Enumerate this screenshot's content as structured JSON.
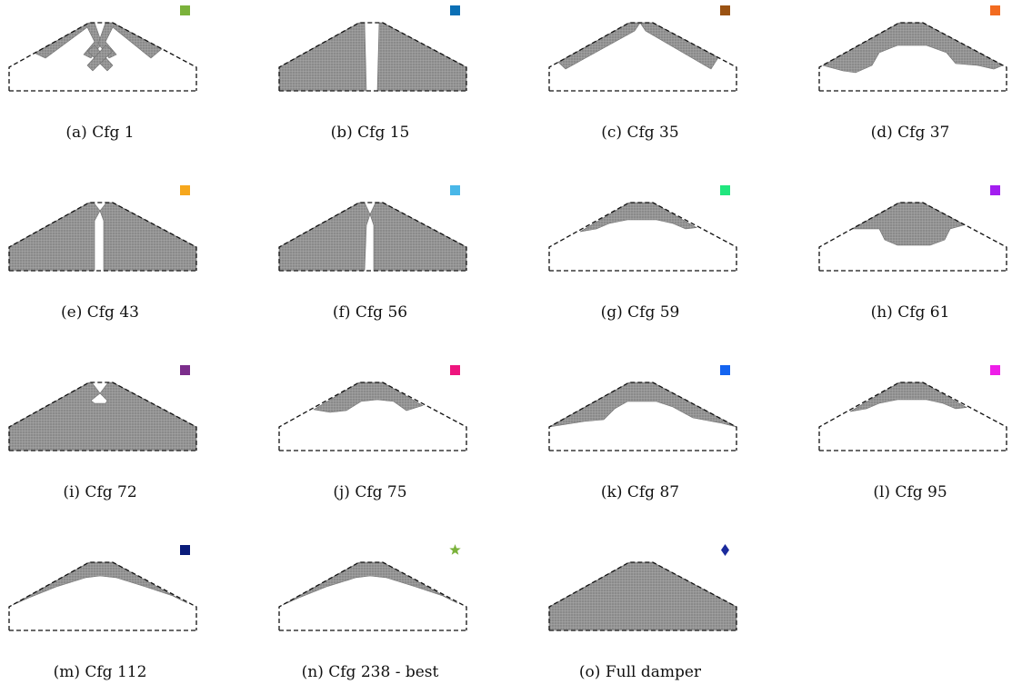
{
  "figure": {
    "panels": [
      {
        "caption": "(a) Cfg 1",
        "marker": {
          "shape": "square",
          "color": "#7bb23b"
        },
        "fill": "x-shape"
      },
      {
        "caption": "(b) Cfg 15",
        "marker": {
          "shape": "square",
          "color": "#0b6fb5"
        },
        "fill": "full-slot"
      },
      {
        "caption": "(c) Cfg 35",
        "marker": {
          "shape": "square",
          "color": "#9a5212"
        },
        "fill": "thin-v"
      },
      {
        "caption": "(d) Cfg 37",
        "marker": {
          "shape": "square",
          "color": "#f26b20"
        },
        "fill": "arch-wide"
      },
      {
        "caption": "(e) Cfg 43",
        "marker": {
          "shape": "square",
          "color": "#f6a71d"
        },
        "fill": "full-slot-x"
      },
      {
        "caption": "(f) Cfg 56",
        "marker": {
          "shape": "square",
          "color": "#49b7e8"
        },
        "fill": "full-notch"
      },
      {
        "caption": "(g) Cfg 59",
        "marker": {
          "shape": "square",
          "color": "#21e67e"
        },
        "fill": "cap-small"
      },
      {
        "caption": "(h) Cfg 61",
        "marker": {
          "shape": "square",
          "color": "#a31ef0"
        },
        "fill": "cap-deep"
      },
      {
        "caption": "(i) Cfg 72",
        "marker": {
          "shape": "square",
          "color": "#7b2d8b"
        },
        "fill": "full-x"
      },
      {
        "caption": "(j) Cfg 75",
        "marker": {
          "shape": "square",
          "color": "#ee157e"
        },
        "fill": "cap-mid"
      },
      {
        "caption": "(k) Cfg 87",
        "marker": {
          "shape": "square",
          "color": "#1464f0"
        },
        "fill": "arch-k"
      },
      {
        "caption": "(l) Cfg 95",
        "marker": {
          "shape": "square",
          "color": "#ee1ee8"
        },
        "fill": "cap-small"
      },
      {
        "caption": "(m) Cfg 112",
        "marker": {
          "shape": "square",
          "color": "#0a1c7a"
        },
        "fill": "thin-arch"
      },
      {
        "caption": "(n) Cfg 238 - best",
        "marker": {
          "shape": "star",
          "color": "#7bb23b"
        },
        "fill": "thin-arch"
      },
      {
        "caption": "(o) Full damper",
        "marker": {
          "shape": "diamond",
          "color": "#1a2a9c"
        },
        "fill": "full"
      }
    ]
  }
}
